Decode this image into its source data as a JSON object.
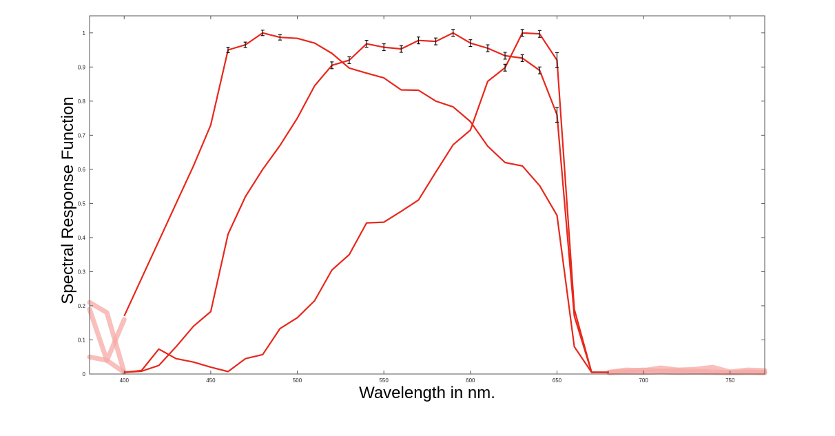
{
  "chart_data": {
    "type": "line",
    "title": "",
    "xlabel": "Wavelength in nm.",
    "ylabel": "Spectral Response Function",
    "xlim": [
      380,
      770
    ],
    "ylim": [
      0,
      1.05
    ],
    "grid": false,
    "legend": "none",
    "x_ticks": [
      400,
      450,
      500,
      550,
      600,
      650,
      700,
      750
    ],
    "y_ticks": [
      0,
      0.1,
      0.2,
      0.3,
      0.4,
      0.5,
      0.6,
      0.7,
      0.8,
      0.9,
      1
    ],
    "x_tick_labels": [
      "400",
      "450",
      "500",
      "550",
      "600",
      "650",
      "700",
      "750"
    ],
    "y_tick_labels": [
      "0",
      "0.1",
      "0.2",
      "0.3",
      "0.4",
      "0.5",
      "0.6",
      "0.7",
      "0.8",
      "0.9",
      "1"
    ],
    "colors": {
      "line": "#e8271b",
      "faded": "#f5a9a5",
      "error_bar": "#111111"
    },
    "series": [
      {
        "x": [
          400,
          410,
          420,
          430,
          440,
          450,
          460,
          470,
          480,
          490,
          500,
          510,
          520,
          530,
          540,
          550,
          560,
          570,
          580,
          590,
          600,
          610,
          620,
          630,
          640,
          650,
          660,
          670,
          680
        ],
        "y": [
          0.17,
          0.28,
          0.39,
          0.5,
          0.61,
          0.73,
          0.95,
          0.965,
          1.0,
          0.987,
          0.984,
          0.97,
          0.94,
          0.897,
          0.882,
          0.868,
          0.833,
          0.832,
          0.8,
          0.783,
          0.74,
          0.668,
          0.62,
          0.61,
          0.552,
          0.465,
          0.08,
          0.005,
          0.005
        ],
        "error_bars": [
          {
            "x": 460,
            "y": 0.95,
            "err": 0.008
          },
          {
            "x": 470,
            "y": 0.965,
            "err": 0.008
          },
          {
            "x": 480,
            "y": 1.0,
            "err": 0.008
          },
          {
            "x": 490,
            "y": 0.987,
            "err": 0.008
          }
        ]
      },
      {
        "x": [
          400,
          410,
          420,
          430,
          440,
          450,
          460,
          470,
          480,
          490,
          500,
          510,
          520,
          530,
          540,
          550,
          560,
          570,
          580,
          590,
          600,
          610,
          620,
          630,
          640,
          650,
          660,
          670,
          680
        ],
        "y": [
          0.005,
          0.008,
          0.025,
          0.08,
          0.14,
          0.183,
          0.41,
          0.52,
          0.6,
          0.67,
          0.75,
          0.845,
          0.905,
          0.92,
          0.968,
          0.958,
          0.953,
          0.978,
          0.975,
          1.0,
          0.97,
          0.955,
          0.933,
          0.926,
          0.89,
          0.76,
          0.17,
          0.005,
          0.005
        ],
        "error_bars": [
          {
            "x": 520,
            "y": 0.905,
            "err": 0.01
          },
          {
            "x": 530,
            "y": 0.92,
            "err": 0.01
          },
          {
            "x": 540,
            "y": 0.968,
            "err": 0.01
          },
          {
            "x": 550,
            "y": 0.958,
            "err": 0.01
          },
          {
            "x": 560,
            "y": 0.953,
            "err": 0.01
          },
          {
            "x": 570,
            "y": 0.978,
            "err": 0.01
          },
          {
            "x": 580,
            "y": 0.975,
            "err": 0.01
          },
          {
            "x": 590,
            "y": 1.0,
            "err": 0.01
          },
          {
            "x": 600,
            "y": 0.97,
            "err": 0.01
          },
          {
            "x": 610,
            "y": 0.955,
            "err": 0.01
          },
          {
            "x": 620,
            "y": 0.933,
            "err": 0.01
          },
          {
            "x": 630,
            "y": 0.926,
            "err": 0.01
          },
          {
            "x": 640,
            "y": 0.89,
            "err": 0.01
          },
          {
            "x": 650,
            "y": 0.76,
            "err": 0.022
          }
        ]
      },
      {
        "x": [
          400,
          410,
          420,
          430,
          440,
          450,
          460,
          470,
          480,
          490,
          500,
          510,
          520,
          530,
          540,
          550,
          560,
          570,
          580,
          590,
          600,
          610,
          620,
          630,
          640,
          650,
          660,
          670,
          680
        ],
        "y": [
          0.005,
          0.01,
          0.073,
          0.045,
          0.035,
          0.02,
          0.007,
          0.045,
          0.057,
          0.133,
          0.165,
          0.215,
          0.305,
          0.35,
          0.443,
          0.445,
          0.477,
          0.51,
          0.592,
          0.672,
          0.715,
          0.858,
          0.898,
          1.0,
          0.997,
          0.92,
          0.19,
          0.005,
          0.005
        ],
        "error_bars": [
          {
            "x": 620,
            "y": 0.898,
            "err": 0.01
          },
          {
            "x": 630,
            "y": 1.0,
            "err": 0.01
          },
          {
            "x": 640,
            "y": 0.997,
            "err": 0.01
          },
          {
            "x": 650,
            "y": 0.92,
            "err": 0.022
          }
        ]
      }
    ],
    "faded_segments": [
      {
        "x": [
          380,
          390,
          400
        ],
        "y": [
          0.21,
          0.18,
          0.005
        ]
      },
      {
        "x": [
          380,
          390,
          400
        ],
        "y": [
          0.19,
          0.04,
          0.16
        ]
      },
      {
        "x": [
          380,
          390,
          400
        ],
        "y": [
          0.05,
          0.04,
          0.005
        ]
      },
      {
        "x": [
          680,
          690,
          700,
          710,
          720,
          730,
          740,
          750,
          760,
          770
        ],
        "y": [
          0.005,
          0.012,
          0.01,
          0.018,
          0.012,
          0.014,
          0.02,
          0.006,
          0.012,
          0.01
        ]
      },
      {
        "x": [
          680,
          690,
          700,
          710,
          720,
          730,
          740,
          750,
          760,
          770
        ],
        "y": [
          0.005,
          0.008,
          0.012,
          0.008,
          0.01,
          0.008,
          0.006,
          0.004,
          0.006,
          0.005
        ]
      },
      {
        "x": [
          680,
          690,
          700,
          710,
          720,
          730,
          740,
          750,
          760,
          770
        ],
        "y": [
          0.003,
          0.005,
          0.004,
          0.006,
          0.004,
          0.005,
          0.004,
          0.003,
          0.004,
          0.003
        ]
      }
    ]
  }
}
